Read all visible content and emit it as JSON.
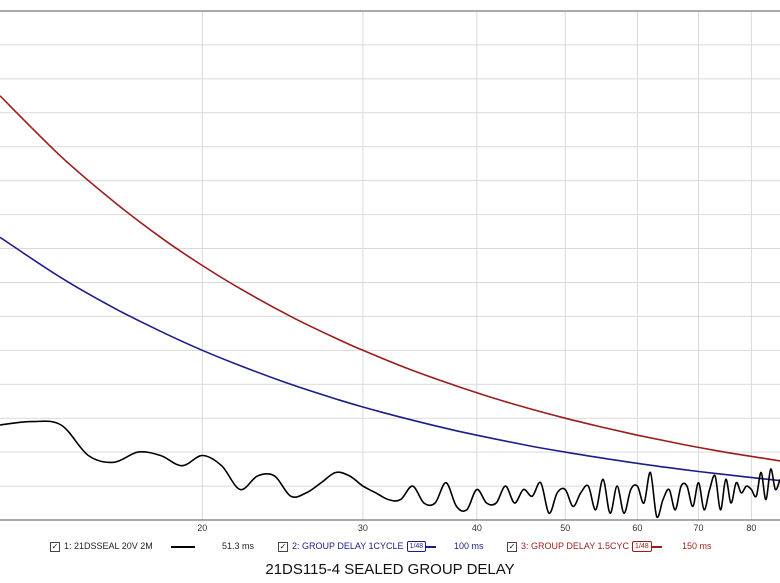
{
  "chart_data": {
    "type": "line",
    "title": "21DS115-4 SEALED GROUP DELAY",
    "xscale": "log",
    "xlim": [
      12,
      86
    ],
    "ylim": [
      0,
      150
    ],
    "x_ticks": [
      20,
      30,
      40,
      50,
      60,
      70,
      80
    ],
    "grid": true,
    "series": [
      {
        "name": "1: 21DSSEAL 20V 2M",
        "color": "#000000",
        "value_label": "51.3 ms",
        "x": [
          12,
          13,
          14,
          15,
          16,
          17,
          18,
          19,
          20,
          21,
          22,
          23,
          24,
          25,
          26,
          27,
          28,
          29,
          30,
          31,
          32,
          33,
          34,
          35,
          36,
          37,
          38,
          39,
          40,
          41,
          42,
          43,
          44,
          45,
          46,
          47,
          48,
          49,
          50,
          51,
          52,
          53,
          54,
          55,
          56,
          57,
          58,
          59,
          60,
          61,
          62,
          63,
          64,
          65,
          66,
          67,
          68,
          69,
          70,
          71,
          72,
          73,
          74,
          75,
          76,
          77,
          78,
          79,
          80,
          81,
          82,
          83,
          84,
          85,
          86
        ],
        "values": [
          28,
          29,
          28,
          19,
          17,
          20,
          19,
          16,
          19,
          16,
          9,
          13,
          13,
          7,
          8,
          11,
          14,
          13,
          10,
          8,
          6,
          6,
          10,
          5,
          5,
          11,
          4,
          3,
          9,
          5,
          5,
          10,
          5,
          9,
          7,
          11,
          2,
          8,
          9,
          4,
          8,
          10,
          3,
          12,
          2,
          10,
          2,
          9,
          10,
          5,
          14,
          1,
          6,
          9,
          3,
          10,
          10,
          4,
          11,
          3,
          9,
          13,
          3,
          12,
          5,
          11,
          8,
          10,
          9,
          7,
          14,
          6,
          15,
          9,
          12
        ]
      },
      {
        "name": "2: GROUP DELAY 1CYCLE",
        "color": "#1c1c8a",
        "value_label": "100 ms",
        "smoothing": "1/48",
        "equation": "1000/f",
        "x": [
          12,
          14,
          16,
          18,
          20,
          22,
          25,
          28,
          30,
          34,
          38,
          42,
          46,
          50,
          55,
          60,
          65,
          70,
          76,
          82,
          86
        ],
        "values": [
          83.3,
          71.4,
          62.5,
          55.6,
          50.0,
          45.5,
          40.0,
          35.7,
          33.3,
          29.4,
          26.3,
          23.8,
          21.7,
          20.0,
          18.2,
          16.7,
          15.4,
          14.3,
          13.2,
          12.2,
          11.6
        ]
      },
      {
        "name": "3: GROUP DELAY 1.5CYC",
        "color": "#9c1c1c",
        "value_label": "150 ms",
        "smoothing": "1/48",
        "equation": "1500/f",
        "x": [
          12,
          14,
          16,
          18,
          20,
          22,
          25,
          28,
          30,
          34,
          38,
          42,
          46,
          50,
          55,
          60,
          65,
          70,
          76,
          82,
          86
        ],
        "values": [
          125.0,
          107.1,
          93.8,
          83.3,
          75.0,
          68.2,
          60.0,
          53.6,
          50.0,
          44.1,
          39.5,
          35.7,
          32.6,
          30.0,
          27.3,
          25.0,
          23.1,
          21.4,
          19.7,
          18.3,
          17.4
        ]
      }
    ]
  },
  "legend": {
    "checkbox_mark": "✓",
    "items": [
      {
        "label": "1: 21DSSEAL 20V 2M",
        "value": "51.3 ms",
        "color": "#000000",
        "badge": ""
      },
      {
        "label": "2: GROUP DELAY 1CYCLE",
        "value": "100 ms",
        "color": "#1c1c8a",
        "badge": "1/48"
      },
      {
        "label": "3: GROUP DELAY 1.5CYC",
        "value": "150 ms",
        "color": "#9c1c1c",
        "badge": "1/48"
      }
    ]
  }
}
